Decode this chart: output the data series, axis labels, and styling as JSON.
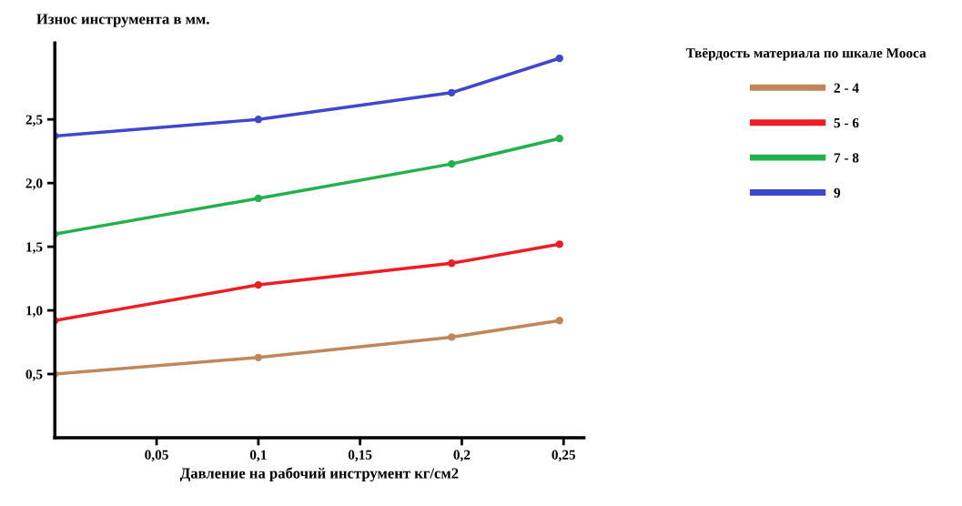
{
  "chart_data": {
    "type": "line",
    "ylabel": "Износ инструмента в мм.",
    "xlabel": "Давление на рабочий инструмент кг/см2",
    "legend_title": "Твёрдость материала по шкале Мооса",
    "legend": "right",
    "marker": "circle",
    "line_style": "solid",
    "grid": false,
    "x": [
      0,
      0.1,
      0.195,
      0.248
    ],
    "xlim": [
      0,
      0.26
    ],
    "xticks": [
      {
        "value": 0.05,
        "label": "0,05"
      },
      {
        "value": 0.1,
        "label": "0,1"
      },
      {
        "value": 0.15,
        "label": "0,15"
      },
      {
        "value": 0.2,
        "label": "0,2"
      },
      {
        "value": 0.25,
        "label": "0,25"
      }
    ],
    "ylim": [
      0,
      3.1
    ],
    "yticks": [
      {
        "value": 0.5,
        "label": "0,5"
      },
      {
        "value": 1.0,
        "label": "1,0"
      },
      {
        "value": 1.5,
        "label": "1,5"
      },
      {
        "value": 2.0,
        "label": "2,0"
      },
      {
        "value": 2.5,
        "label": "2,5"
      }
    ],
    "series": [
      {
        "name": "2 - 4",
        "color": "#c0875a",
        "values": [
          0.5,
          0.63,
          0.79,
          0.92
        ]
      },
      {
        "name": "5 - 6",
        "color": "#ee1c24",
        "values": [
          0.92,
          1.2,
          1.37,
          1.52
        ]
      },
      {
        "name": "7 - 8",
        "color": "#22b14c",
        "values": [
          1.6,
          1.88,
          2.15,
          2.35
        ]
      },
      {
        "name": "9",
        "color": "#3f48cc",
        "values": [
          2.37,
          2.5,
          2.71,
          2.98
        ]
      }
    ]
  }
}
